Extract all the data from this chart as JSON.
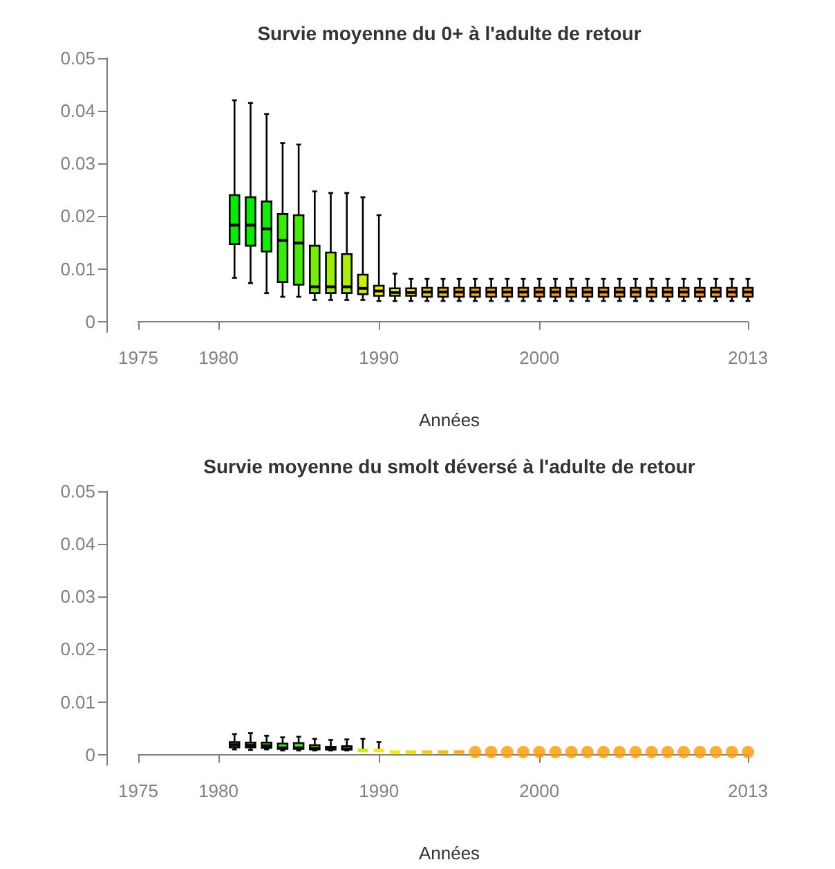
{
  "chart_data": [
    {
      "type": "box",
      "title": "Survie moyenne du 0+ à l'adulte de retour",
      "xlabel": "Années",
      "xlim": [
        1975,
        2013
      ],
      "xticks": [
        1975,
        1980,
        1990,
        2000,
        2013
      ],
      "ylim": [
        -0.002,
        0.05
      ],
      "yticks": [
        0,
        0.01,
        0.02,
        0.03,
        0.04,
        0.05
      ],
      "series": [
        {
          "x": [
            1981,
            1982,
            1983,
            1984,
            1985,
            1986,
            1987,
            1988,
            1989,
            1990,
            1991,
            1992,
            1993,
            1994,
            1995,
            1996,
            1997,
            1998,
            1999,
            2000,
            2001,
            2002,
            2003,
            2004,
            2005,
            2006,
            2007,
            2008,
            2009,
            2010,
            2011,
            2012,
            2013
          ],
          "colors": [
            "#00ee00",
            "#00ee00",
            "#11ee00",
            "#33ee00",
            "#44ee00",
            "#77ee00",
            "#99ee00",
            "#aaee00",
            "#ccee00",
            "#eeee00",
            "#eeee00",
            "#eedd00",
            "#eecc00",
            "#eebb00",
            "#ffaa00",
            "#ffa500",
            "#ffa500",
            "#ff9f00",
            "#ff9f00",
            "#ff9900",
            "#ff9900",
            "#ff9900",
            "#ff9900",
            "#ff9900",
            "#ff9900",
            "#ff9900",
            "#ff9900",
            "#ff9900",
            "#ff9900",
            "#ff9900",
            "#ff9900",
            "#ff9900",
            "#ff9900"
          ],
          "boxes": [
            {
              "low": 0.0083,
              "q1": 0.0147,
              "median": 0.0183,
              "q3": 0.024,
              "high": 0.042
            },
            {
              "low": 0.0073,
              "q1": 0.0144,
              "median": 0.0183,
              "q3": 0.0236,
              "high": 0.0415
            },
            {
              "low": 0.0054,
              "q1": 0.0133,
              "median": 0.0176,
              "q3": 0.0228,
              "high": 0.0394
            },
            {
              "low": 0.0047,
              "q1": 0.0075,
              "median": 0.0154,
              "q3": 0.0204,
              "high": 0.0339
            },
            {
              "low": 0.0047,
              "q1": 0.007,
              "median": 0.0149,
              "q3": 0.0202,
              "high": 0.0336
            },
            {
              "low": 0.0041,
              "q1": 0.0054,
              "median": 0.0066,
              "q3": 0.0144,
              "high": 0.0247
            },
            {
              "low": 0.0041,
              "q1": 0.0054,
              "median": 0.0066,
              "q3": 0.0131,
              "high": 0.0244
            },
            {
              "low": 0.0041,
              "q1": 0.0054,
              "median": 0.0066,
              "q3": 0.0128,
              "high": 0.0244
            },
            {
              "low": 0.0041,
              "q1": 0.0052,
              "median": 0.0063,
              "q3": 0.0089,
              "high": 0.0236
            },
            {
              "low": 0.0039,
              "q1": 0.0049,
              "median": 0.0058,
              "q3": 0.0068,
              "high": 0.0202
            },
            {
              "low": 0.0039,
              "q1": 0.0049,
              "median": 0.0055,
              "q3": 0.0063,
              "high": 0.0091
            },
            {
              "low": 0.0039,
              "q1": 0.0049,
              "median": 0.0055,
              "q3": 0.0063,
              "high": 0.0081
            },
            {
              "low": 0.0039,
              "q1": 0.0047,
              "median": 0.0056,
              "q3": 0.0064,
              "high": 0.0081
            },
            {
              "low": 0.0039,
              "q1": 0.0047,
              "median": 0.0056,
              "q3": 0.0064,
              "high": 0.0081
            },
            {
              "low": 0.0039,
              "q1": 0.0047,
              "median": 0.0056,
              "q3": 0.0064,
              "high": 0.0081
            },
            {
              "low": 0.0039,
              "q1": 0.0047,
              "median": 0.0056,
              "q3": 0.0064,
              "high": 0.0081
            },
            {
              "low": 0.0039,
              "q1": 0.0047,
              "median": 0.0056,
              "q3": 0.0064,
              "high": 0.0081
            },
            {
              "low": 0.0039,
              "q1": 0.0047,
              "median": 0.0056,
              "q3": 0.0064,
              "high": 0.0081
            },
            {
              "low": 0.0039,
              "q1": 0.0047,
              "median": 0.0056,
              "q3": 0.0064,
              "high": 0.0081
            },
            {
              "low": 0.0039,
              "q1": 0.0047,
              "median": 0.0056,
              "q3": 0.0064,
              "high": 0.0081
            },
            {
              "low": 0.0039,
              "q1": 0.0047,
              "median": 0.0056,
              "q3": 0.0064,
              "high": 0.0081
            },
            {
              "low": 0.0039,
              "q1": 0.0047,
              "median": 0.0056,
              "q3": 0.0064,
              "high": 0.0081
            },
            {
              "low": 0.0039,
              "q1": 0.0047,
              "median": 0.0056,
              "q3": 0.0064,
              "high": 0.0081
            },
            {
              "low": 0.0039,
              "q1": 0.0047,
              "median": 0.0056,
              "q3": 0.0064,
              "high": 0.0081
            },
            {
              "low": 0.0039,
              "q1": 0.0047,
              "median": 0.0056,
              "q3": 0.0064,
              "high": 0.0081
            },
            {
              "low": 0.0039,
              "q1": 0.0047,
              "median": 0.0056,
              "q3": 0.0064,
              "high": 0.0081
            },
            {
              "low": 0.0039,
              "q1": 0.0047,
              "median": 0.0056,
              "q3": 0.0064,
              "high": 0.0081
            },
            {
              "low": 0.0039,
              "q1": 0.0047,
              "median": 0.0056,
              "q3": 0.0064,
              "high": 0.0081
            },
            {
              "low": 0.0039,
              "q1": 0.0047,
              "median": 0.0056,
              "q3": 0.0064,
              "high": 0.0081
            },
            {
              "low": 0.0039,
              "q1": 0.0047,
              "median": 0.0056,
              "q3": 0.0064,
              "high": 0.0081
            },
            {
              "low": 0.0039,
              "q1": 0.0047,
              "median": 0.0056,
              "q3": 0.0064,
              "high": 0.0081
            },
            {
              "low": 0.0039,
              "q1": 0.0047,
              "median": 0.0056,
              "q3": 0.0064,
              "high": 0.0081
            },
            {
              "low": 0.0039,
              "q1": 0.0047,
              "median": 0.0056,
              "q3": 0.0064,
              "high": 0.0081
            }
          ]
        }
      ]
    },
    {
      "type": "box",
      "title": "Survie moyenne du smolt déversé à l'adulte de retour",
      "xlabel": "Années",
      "xlim": [
        1975,
        2013
      ],
      "xticks": [
        1975,
        1980,
        1990,
        2000,
        2013
      ],
      "ylim": [
        -0.002,
        0.05
      ],
      "yticks": [
        0,
        0.01,
        0.02,
        0.03,
        0.04,
        0.05
      ],
      "series": [
        {
          "x": [
            1981,
            1982,
            1983,
            1984,
            1985,
            1986,
            1987,
            1988,
            1989,
            1990,
            1991,
            1992,
            1993,
            1994,
            1995
          ],
          "colors": [
            "#00ee00",
            "#00ee00",
            "#11ee00",
            "#33ee00",
            "#44ee00",
            "#77ee00",
            "#99ee00",
            "#aaee00",
            "#ccee00",
            "#eeee00",
            "#eeee00",
            "#eedd00",
            "#eecc00",
            "#eebb00",
            "#ffaa00"
          ],
          "boxes": [
            {
              "low": 0.001,
              "q1": 0.0014,
              "median": 0.0019,
              "q3": 0.0024,
              "high": 0.0039
            },
            {
              "low": 0.0009,
              "q1": 0.0014,
              "median": 0.0018,
              "q3": 0.0023,
              "high": 0.0041
            },
            {
              "low": 0.001,
              "q1": 0.0013,
              "median": 0.0017,
              "q3": 0.0023,
              "high": 0.0036
            },
            {
              "low": 0.0008,
              "q1": 0.0011,
              "median": 0.0013,
              "q3": 0.0021,
              "high": 0.0033
            },
            {
              "low": 0.0008,
              "q1": 0.0011,
              "median": 0.0013,
              "q3": 0.0022,
              "high": 0.0034
            },
            {
              "low": 0.0008,
              "q1": 0.001,
              "median": 0.0012,
              "q3": 0.0018,
              "high": 0.003
            },
            {
              "low": 0.0008,
              "q1": 0.001,
              "median": 0.0011,
              "q3": 0.0015,
              "high": 0.0028
            },
            {
              "low": 0.0008,
              "q1": 0.001,
              "median": 0.0011,
              "q3": 0.0016,
              "high": 0.0029
            },
            {
              "low": 0.0008,
              "q1": 0.0008,
              "median": 0.0008,
              "q3": 0.0008,
              "high": 0.003
            },
            {
              "low": 0.0008,
              "q1": 0.0008,
              "median": 0.0008,
              "q3": 0.0008,
              "high": 0.0024
            },
            {
              "low": 0.0005,
              "q1": 0.0005,
              "median": 0.0005,
              "q3": 0.0005,
              "high": 0.0005
            },
            {
              "low": 0.0005,
              "q1": 0.0005,
              "median": 0.0005,
              "q3": 0.0005,
              "high": 0.0005
            },
            {
              "low": 0.0005,
              "q1": 0.0005,
              "median": 0.0005,
              "q3": 0.0005,
              "high": 0.0005
            },
            {
              "low": 0.0005,
              "q1": 0.0005,
              "median": 0.0005,
              "q3": 0.0005,
              "high": 0.0005
            },
            {
              "low": 0.0005,
              "q1": 0.0005,
              "median": 0.0005,
              "q3": 0.0005,
              "high": 0.0005
            }
          ]
        },
        {
          "type": "scatter",
          "marker": "circle",
          "color": "#ff9900",
          "x": [
            1996,
            1997,
            1998,
            1999,
            2000,
            2001,
            2002,
            2003,
            2004,
            2005,
            2006,
            2007,
            2008,
            2009,
            2010,
            2011,
            2012,
            2013
          ],
          "values": [
            0.0005,
            0.0005,
            0.0005,
            0.0005,
            0.0005,
            0.0005,
            0.0005,
            0.0005,
            0.0005,
            0.0005,
            0.0005,
            0.0005,
            0.0005,
            0.0005,
            0.0005,
            0.0005,
            0.0005,
            0.0005
          ]
        }
      ]
    }
  ]
}
